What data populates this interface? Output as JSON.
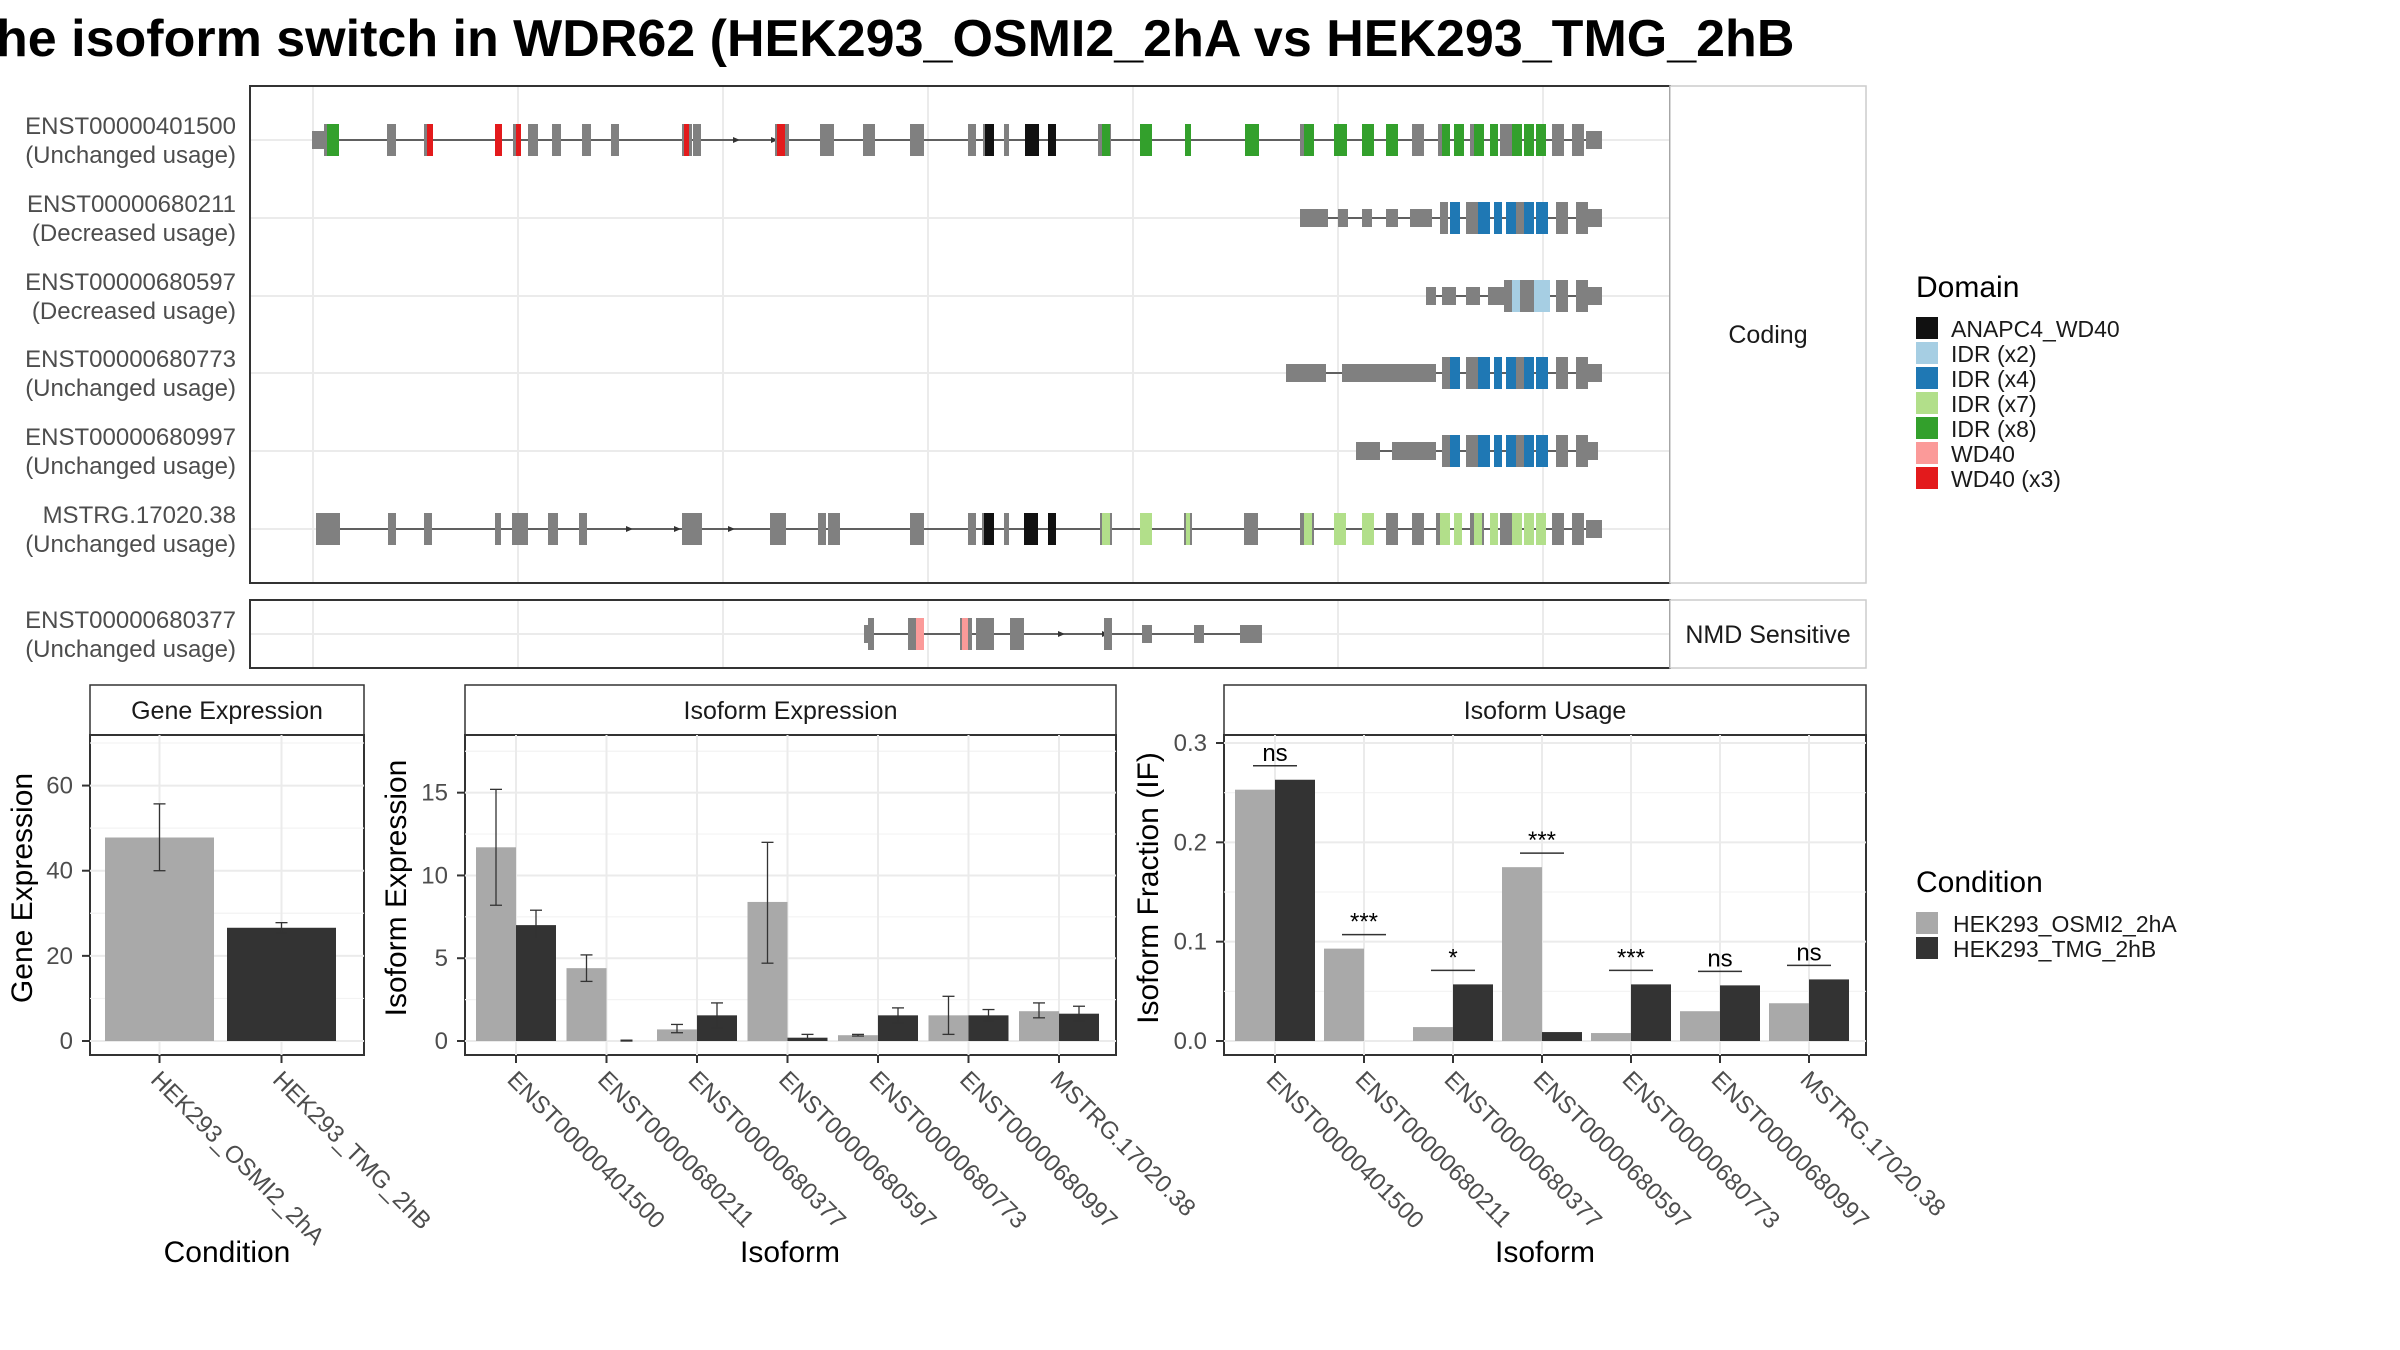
{
  "title": "he isoform switch in WDR62 (HEK293_OSMI2_2hA vs HEK293_TMG_2hB",
  "colors": {
    "intron_grey": "#808080",
    "cond_a": "#A9A9A9",
    "cond_b": "#333333",
    "panel_border": "#333333",
    "grid": "#EBEBEB",
    "strip_bg": "#FFFFFF"
  },
  "chart_data": [
    {
      "type": "gene-structure",
      "facet_labels": [
        "Coding",
        "NMD Sensitive"
      ],
      "transcripts": [
        {
          "id": "ENST00000401500",
          "status": "(Unchanged usage)",
          "facet": "Coding"
        },
        {
          "id": "ENST00000680211",
          "status": "(Decreased usage)",
          "facet": "Coding"
        },
        {
          "id": "ENST00000680597",
          "status": "(Decreased usage)",
          "facet": "Coding"
        },
        {
          "id": "ENST00000680773",
          "status": "(Unchanged usage)",
          "facet": "Coding"
        },
        {
          "id": "ENST00000680997",
          "status": "(Unchanged usage)",
          "facet": "Coding"
        },
        {
          "id": "MSTRG.17020.38",
          "status": "(Unchanged usage)",
          "facet": "Coding"
        },
        {
          "id": "ENST00000680377",
          "status": "(Unchanged usage)",
          "facet": "NMD Sensitive"
        }
      ],
      "legend": {
        "title": "Domain",
        "entries": [
          {
            "label": "ANAPC4_WD40",
            "color": "#111111"
          },
          {
            "label": "IDR (x2)",
            "color": "#A6CEE3"
          },
          {
            "label": "IDR (x4)",
            "color": "#1F78B4"
          },
          {
            "label": "IDR (x7)",
            "color": "#B2DF8A"
          },
          {
            "label": "IDR (x8)",
            "color": "#33A02C"
          },
          {
            "label": "WD40",
            "color": "#FB9A99"
          },
          {
            "label": "WD40 (x3)",
            "color": "#E31A1C"
          }
        ]
      }
    },
    {
      "type": "bar",
      "strip": "Gene Expression",
      "xlabel": "Condition",
      "ylabel": "Gene Expression",
      "ylim": [
        0,
        70
      ],
      "yticks": [
        0,
        20,
        40,
        60
      ],
      "categories": [
        "HEK293_OSMI2_2hA",
        "HEK293_TMG_2hB"
      ],
      "values": [
        47.8,
        26.6
      ],
      "errors": [
        [
          40,
          55.7
        ],
        [
          25.4,
          27.8
        ]
      ]
    },
    {
      "type": "bar",
      "strip": "Isoform Expression",
      "xlabel": "Isoform",
      "ylabel": "Isoform Expression",
      "ylim": [
        0,
        18
      ],
      "yticks": [
        0,
        5,
        10,
        15
      ],
      "categories": [
        "ENST00000401500",
        "ENST00000680211",
        "ENST00000680377",
        "ENST00000680597",
        "ENST00000680773",
        "ENST00000680997",
        "MSTRG.17020.38"
      ],
      "series": [
        {
          "name": "HEK293_OSMI2_2hA",
          "values": [
            11.7,
            4.4,
            0.7,
            8.4,
            0.35,
            1.55,
            1.8
          ],
          "errors": [
            [
              8.2,
              15.2
            ],
            [
              3.6,
              5.2
            ],
            [
              0.5,
              1.0
            ],
            [
              4.7,
              12.0
            ],
            [
              0.3,
              0.4
            ],
            [
              0.4,
              2.7
            ],
            [
              1.4,
              2.3
            ]
          ]
        },
        {
          "name": "HEK293_TMG_2hB",
          "values": [
            7.0,
            0.0,
            1.55,
            0.2,
            1.55,
            1.55,
            1.65
          ],
          "errors": [
            [
              6.2,
              7.9
            ],
            [
              0,
              0.05
            ],
            [
              0.8,
              2.3
            ],
            [
              0.1,
              0.4
            ],
            [
              1.1,
              2.0
            ],
            [
              1.2,
              1.9
            ],
            [
              1.2,
              2.1
            ]
          ]
        }
      ]
    },
    {
      "type": "bar",
      "strip": "Isoform Usage",
      "xlabel": "Isoform",
      "ylabel": "Isoform Fraction (IF)",
      "ylim": [
        0,
        0.3
      ],
      "yticks": [
        "0.0",
        "0.1",
        "0.2",
        "0.3"
      ],
      "categories": [
        "ENST00000401500",
        "ENST00000680211",
        "ENST00000680377",
        "ENST00000680597",
        "ENST00000680773",
        "ENST00000680997",
        "MSTRG.17020.38"
      ],
      "series": [
        {
          "name": "HEK293_OSMI2_2hA",
          "values": [
            0.253,
            0.093,
            0.014,
            0.175,
            0.008,
            0.03,
            0.038
          ]
        },
        {
          "name": "HEK293_TMG_2hB",
          "values": [
            0.263,
            0.0,
            0.057,
            0.009,
            0.057,
            0.056,
            0.062
          ]
        }
      ],
      "significance": [
        "ns",
        "***",
        "*",
        "***",
        "***",
        "ns",
        "ns"
      ],
      "legend": {
        "title": "Condition",
        "entries": [
          {
            "label": "HEK293_OSMI2_2hA",
            "color": "#A9A9A9"
          },
          {
            "label": "HEK293_TMG_2hB",
            "color": "#333333"
          }
        ]
      }
    }
  ]
}
